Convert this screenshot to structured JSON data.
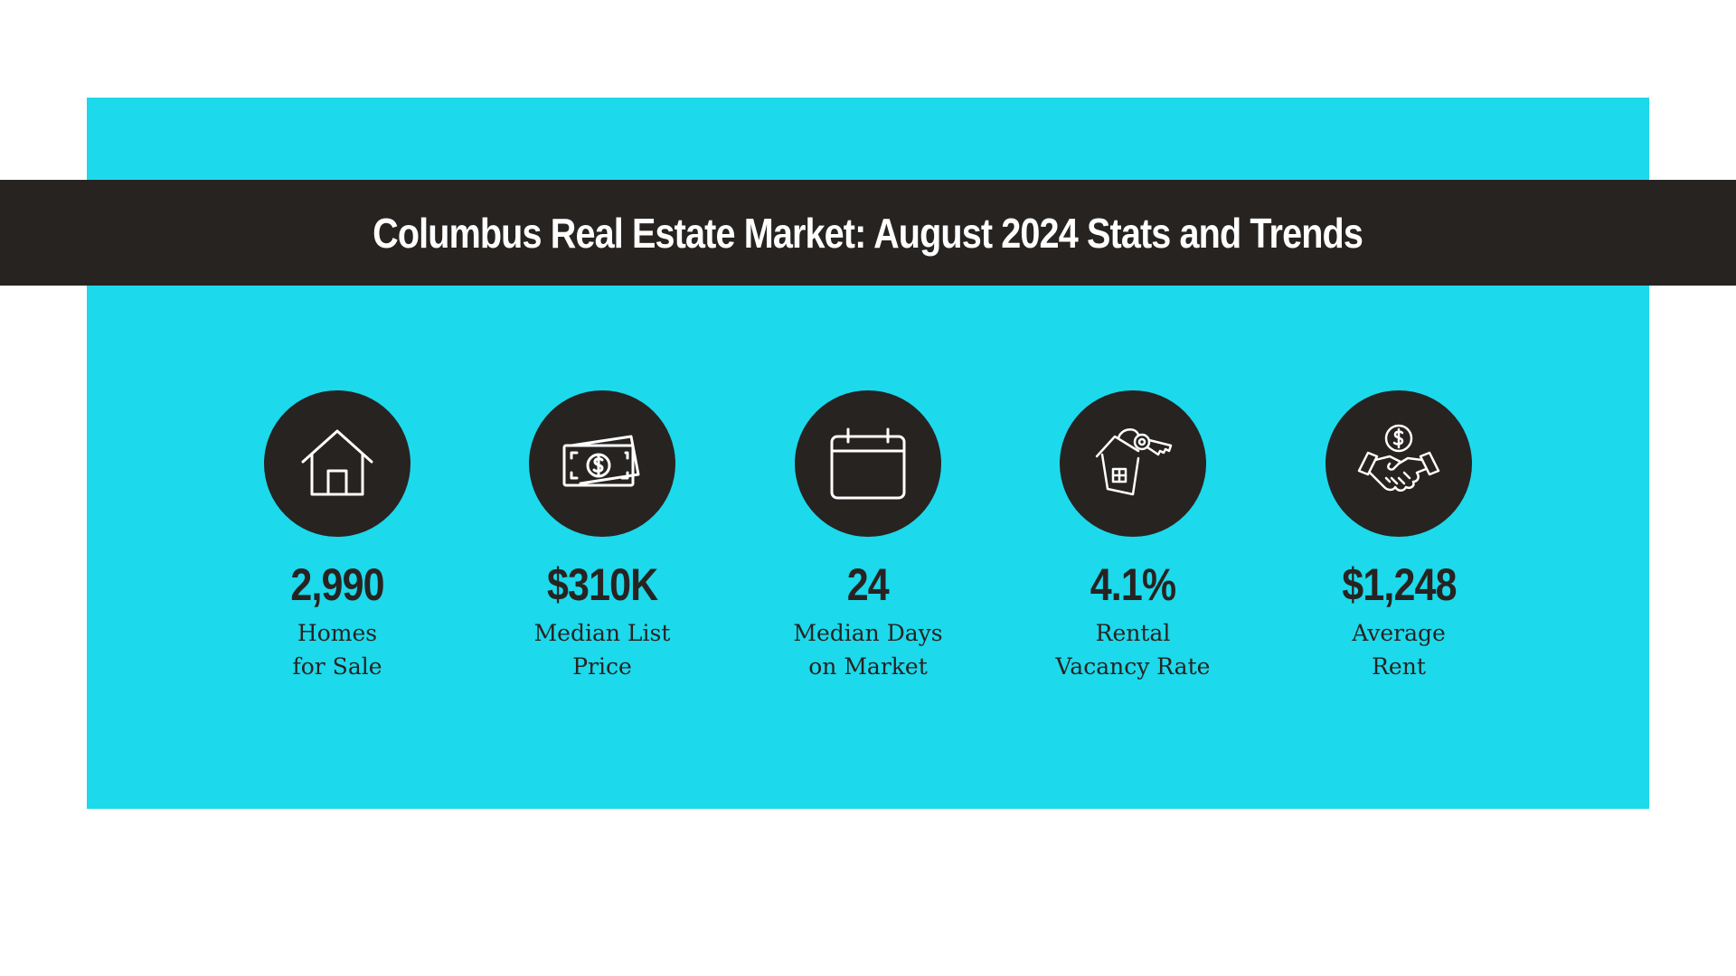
{
  "title": "Columbus Real Estate Market: August 2024 Stats and Trends",
  "colors": {
    "accent": "#1cd9eb",
    "dark": "#272321",
    "icon": "#ffffff"
  },
  "stats": [
    {
      "icon": "house-icon",
      "value": "2,990",
      "label_line1": "Homes",
      "label_line2": "for Sale"
    },
    {
      "icon": "money-icon",
      "value": "$310K",
      "label_line1": "Median List",
      "label_line2": "Price"
    },
    {
      "icon": "calendar-icon",
      "value": "24",
      "label_line1": "Median Days",
      "label_line2": "on Market"
    },
    {
      "icon": "house-key-icon",
      "value": "4.1%",
      "label_line1": "Rental",
      "label_line2": "Vacancy Rate"
    },
    {
      "icon": "handshake-dollar-icon",
      "value": "$1,248",
      "label_line1": "Average",
      "label_line2": "Rent"
    }
  ]
}
